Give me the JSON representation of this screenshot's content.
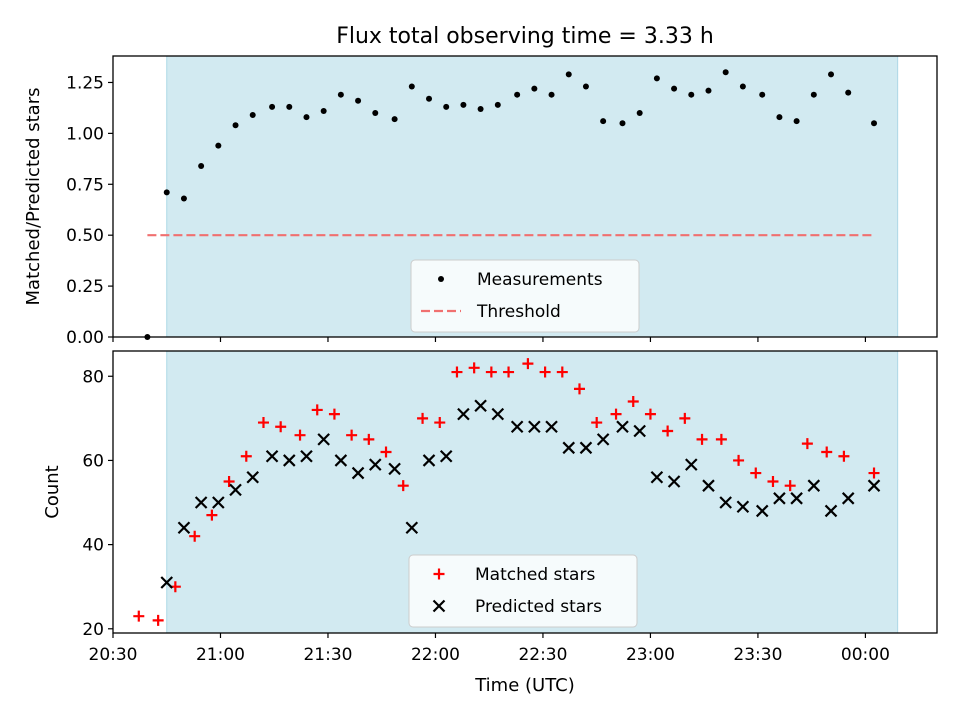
{
  "chart_data": [
    {
      "type": "scatter",
      "title": "Flux total observing time = 3.33 h",
      "xlabel": "",
      "ylabel": "Matched/Predicted stars",
      "x_unit": "UTC time (h)",
      "xlim": [
        20.5,
        24.333
      ],
      "ylim": [
        0,
        1.38
      ],
      "yticks": [
        0.0,
        0.25,
        0.5,
        0.75,
        1.0,
        1.25
      ],
      "ytick_labels": [
        "0.00",
        "0.25",
        "0.50",
        "0.75",
        "1.00",
        "1.25"
      ],
      "shaded_interval": [
        20.75,
        24.15
      ],
      "shade_color": "#add8e6",
      "legend_position": "lower-center",
      "series": [
        {
          "name": "Measurements",
          "marker": "dot",
          "color": "#000000",
          "points": [
            [
              20.66,
              0.0
            ],
            [
              20.75,
              0.71
            ],
            [
              20.83,
              0.68
            ],
            [
              20.91,
              0.84
            ],
            [
              20.99,
              0.94
            ],
            [
              21.07,
              1.04
            ],
            [
              21.15,
              1.09
            ],
            [
              21.24,
              1.13
            ],
            [
              21.32,
              1.13
            ],
            [
              21.4,
              1.08
            ],
            [
              21.48,
              1.11
            ],
            [
              21.56,
              1.19
            ],
            [
              21.64,
              1.16
            ],
            [
              21.72,
              1.1
            ],
            [
              21.81,
              1.07
            ],
            [
              21.89,
              1.23
            ],
            [
              21.97,
              1.17
            ],
            [
              22.05,
              1.13
            ],
            [
              22.13,
              1.14
            ],
            [
              22.21,
              1.12
            ],
            [
              22.29,
              1.14
            ],
            [
              22.38,
              1.19
            ],
            [
              22.46,
              1.22
            ],
            [
              22.54,
              1.19
            ],
            [
              22.62,
              1.29
            ],
            [
              22.7,
              1.23
            ],
            [
              22.78,
              1.06
            ],
            [
              22.87,
              1.05
            ],
            [
              22.95,
              1.1
            ],
            [
              23.03,
              1.27
            ],
            [
              23.11,
              1.22
            ],
            [
              23.19,
              1.19
            ],
            [
              23.27,
              1.21
            ],
            [
              23.35,
              1.3
            ],
            [
              23.43,
              1.23
            ],
            [
              23.52,
              1.19
            ],
            [
              23.6,
              1.08
            ],
            [
              23.68,
              1.06
            ],
            [
              23.76,
              1.19
            ],
            [
              23.84,
              1.29
            ],
            [
              23.92,
              1.2
            ],
            [
              24.04,
              1.05
            ]
          ]
        },
        {
          "name": "Threshold",
          "marker": "dashed-line",
          "color": "#f07070",
          "y": 0.5,
          "x_range": [
            20.66,
            24.04
          ]
        }
      ]
    },
    {
      "type": "scatter",
      "title": "",
      "xlabel": "Time (UTC)",
      "ylabel": "Count",
      "x_unit": "UTC time (h)",
      "xlim": [
        20.5,
        24.333
      ],
      "ylim": [
        19,
        86
      ],
      "yticks": [
        20,
        40,
        60,
        80
      ],
      "ytick_labels": [
        "20",
        "40",
        "60",
        "80"
      ],
      "xticks": [
        20.5,
        21.0,
        21.5,
        22.0,
        22.5,
        23.0,
        23.5,
        24.0
      ],
      "xtick_labels": [
        "20:30",
        "21:00",
        "21:30",
        "22:00",
        "22:30",
        "23:00",
        "23:30",
        "00:00"
      ],
      "shaded_interval": [
        20.75,
        24.15
      ],
      "shade_color": "#add8e6",
      "legend_position": "lower-center",
      "series": [
        {
          "name": "Matched stars",
          "marker": "plus",
          "color": "#ff0000",
          "points": [
            [
              20.62,
              23
            ],
            [
              20.71,
              22
            ],
            [
              20.79,
              30
            ],
            [
              20.88,
              42
            ],
            [
              20.96,
              47
            ],
            [
              21.04,
              55
            ],
            [
              21.12,
              61
            ],
            [
              21.2,
              69
            ],
            [
              21.28,
              68
            ],
            [
              21.37,
              66
            ],
            [
              21.45,
              72
            ],
            [
              21.53,
              71
            ],
            [
              21.61,
              66
            ],
            [
              21.69,
              65
            ],
            [
              21.77,
              62
            ],
            [
              21.85,
              54
            ],
            [
              21.94,
              70
            ],
            [
              22.02,
              69
            ],
            [
              22.1,
              81
            ],
            [
              22.18,
              82
            ],
            [
              22.26,
              81
            ],
            [
              22.34,
              81
            ],
            [
              22.43,
              83
            ],
            [
              22.51,
              81
            ],
            [
              22.59,
              81
            ],
            [
              22.67,
              77
            ],
            [
              22.75,
              69
            ],
            [
              22.84,
              71
            ],
            [
              22.92,
              74
            ],
            [
              23.0,
              71
            ],
            [
              23.08,
              67
            ],
            [
              23.16,
              70
            ],
            [
              23.24,
              65
            ],
            [
              23.33,
              65
            ],
            [
              23.41,
              60
            ],
            [
              23.49,
              57
            ],
            [
              23.57,
              55
            ],
            [
              23.65,
              54
            ],
            [
              23.73,
              64
            ],
            [
              23.82,
              62
            ],
            [
              23.9,
              61
            ],
            [
              24.04,
              57
            ]
          ]
        },
        {
          "name": "Predicted stars",
          "marker": "x",
          "color": "#000000",
          "points": [
            [
              20.75,
              31
            ],
            [
              20.83,
              44
            ],
            [
              20.91,
              50
            ],
            [
              20.99,
              50
            ],
            [
              21.07,
              53
            ],
            [
              21.15,
              56
            ],
            [
              21.24,
              61
            ],
            [
              21.32,
              60
            ],
            [
              21.4,
              61
            ],
            [
              21.48,
              65
            ],
            [
              21.56,
              60
            ],
            [
              21.64,
              57
            ],
            [
              21.72,
              59
            ],
            [
              21.81,
              58
            ],
            [
              21.89,
              44
            ],
            [
              21.97,
              60
            ],
            [
              22.05,
              61
            ],
            [
              22.13,
              71
            ],
            [
              22.21,
              73
            ],
            [
              22.29,
              71
            ],
            [
              22.38,
              68
            ],
            [
              22.46,
              68
            ],
            [
              22.54,
              68
            ],
            [
              22.62,
              63
            ],
            [
              22.7,
              63
            ],
            [
              22.78,
              65
            ],
            [
              22.87,
              68
            ],
            [
              22.95,
              67
            ],
            [
              23.03,
              56
            ],
            [
              23.11,
              55
            ],
            [
              23.19,
              59
            ],
            [
              23.27,
              54
            ],
            [
              23.35,
              50
            ],
            [
              23.43,
              49
            ],
            [
              23.52,
              48
            ],
            [
              23.6,
              51
            ],
            [
              23.68,
              51
            ],
            [
              23.76,
              54
            ],
            [
              23.84,
              48
            ],
            [
              23.92,
              51
            ],
            [
              24.04,
              54
            ]
          ]
        }
      ]
    }
  ]
}
